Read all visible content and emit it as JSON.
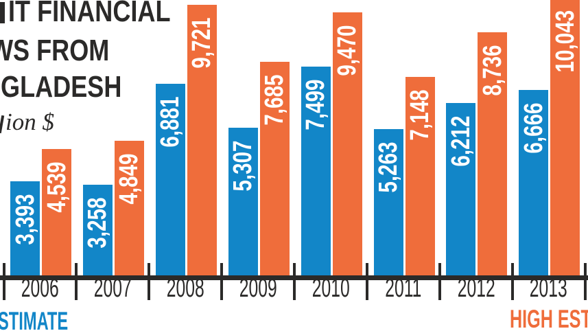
{
  "title": {
    "line1": "IT FINANCIAL",
    "line2": "WS FROM",
    "line3": "GLADESH",
    "unit": "ion $"
  },
  "legend": {
    "low_estimate": "STIMATE",
    "high_estimate": "HIGH EST"
  },
  "colors": {
    "low_bar": "#1286c8",
    "high_bar": "#ef6d3b",
    "axis": "#2b2a29",
    "title_text": "#2b2a29",
    "bar_value_text": "#ffffff",
    "background": "#ffffff"
  },
  "chart_data": {
    "type": "bar",
    "categories": [
      "2006",
      "2007",
      "2008",
      "2009",
      "2010",
      "2011",
      "2012",
      "2013"
    ],
    "series": [
      {
        "name": "low",
        "legend_visible_text": "STIMATE",
        "color": "#1286c8",
        "values": [
          3393,
          3258,
          6881,
          5307,
          7499,
          5263,
          6212,
          6666
        ],
        "labels": [
          "3,393",
          "3,258",
          "6,881",
          "5,307",
          "7,499",
          "5,263",
          "6,212",
          "6,666"
        ]
      },
      {
        "name": "high",
        "legend_visible_text": "HIGH EST",
        "color": "#ef6d3b",
        "values": [
          4539,
          4849,
          9721,
          7685,
          9470,
          7148,
          8736,
          10043
        ],
        "labels": [
          "4,539",
          "4,849",
          "9,721",
          "7,685",
          "9,470",
          "7,148",
          "8,736",
          "10,043"
        ]
      }
    ],
    "ylim": [
      0,
      10043
    ],
    "grid": false,
    "value_labels_on_bars": true,
    "value_label_orientation": "rotated-bottom-to-top",
    "legend_position": "below-axis"
  }
}
